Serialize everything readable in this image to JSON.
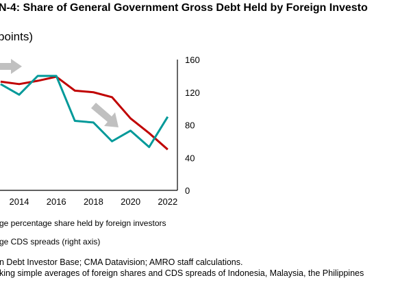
{
  "chart_data": {
    "type": "line",
    "title": "N-4: Share of General Government Gross Debt Held by Foreign Investo",
    "subtitle": "points)",
    "x": [
      2013,
      2014,
      2015,
      2016,
      2017,
      2018,
      2019,
      2020,
      2021,
      2022
    ],
    "x_tick_labels": [
      "2014",
      "2016",
      "2018",
      "2020",
      "2022"
    ],
    "right_axis": {
      "ylim": [
        0,
        160
      ],
      "ticks": [
        "0",
        "40",
        "80",
        "120",
        "160"
      ]
    },
    "series": [
      {
        "name": "ge percentage share held by foreign investors",
        "color": "#c00000",
        "axis": "left",
        "values": [
          133,
          130,
          134,
          139,
          122,
          120,
          114,
          88,
          70,
          50
        ]
      },
      {
        "name": "ge CDS spreads (right axis)",
        "color": "#009999",
        "axis": "right",
        "values": [
          130,
          117,
          140,
          140,
          85,
          83,
          60,
          73,
          53,
          90
        ]
      }
    ],
    "annotations": [
      {
        "type": "arrow",
        "direction": "right",
        "color": "#c0c0c0"
      },
      {
        "type": "arrow",
        "direction": "down-right",
        "color": "#c0c0c0"
      }
    ],
    "grid": false,
    "legend": "bottom"
  },
  "notes": {
    "source": "n Debt Investor Base; CMA Datavision; AMRO staff calculations.",
    "note": "king simple averages of foreign shares and CDS spreads of Indonesia, Malaysia, the Philippines"
  }
}
